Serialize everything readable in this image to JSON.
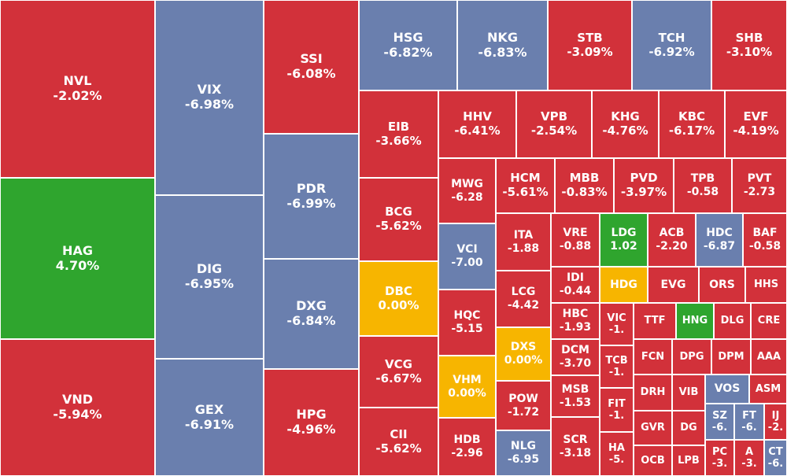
{
  "colors": {
    "down": "#d2313a",
    "floor": "#6a7fae",
    "ref": "#f7b500",
    "up": "#2fa52e"
  },
  "chart_data": {
    "type": "treemap",
    "tiles": [
      {
        "symbol": "NVL",
        "change": "-2.02%",
        "status": "down"
      },
      {
        "symbol": "HAG",
        "change": "4.70%",
        "status": "up"
      },
      {
        "symbol": "VND",
        "change": "-5.94%",
        "status": "down"
      },
      {
        "symbol": "VIX",
        "change": "-6.98%",
        "status": "floor"
      },
      {
        "symbol": "DIG",
        "change": "-6.95%",
        "status": "floor"
      },
      {
        "symbol": "GEX",
        "change": "-6.91%",
        "status": "floor"
      },
      {
        "symbol": "SSI",
        "change": "-6.08%",
        "status": "down"
      },
      {
        "symbol": "PDR",
        "change": "-6.99%",
        "status": "floor"
      },
      {
        "symbol": "DXG",
        "change": "-6.84%",
        "status": "floor"
      },
      {
        "symbol": "HPG",
        "change": "-4.96%",
        "status": "down"
      },
      {
        "symbol": "HSG",
        "change": "-6.82%",
        "status": "floor"
      },
      {
        "symbol": "NKG",
        "change": "-6.83%",
        "status": "floor"
      },
      {
        "symbol": "STB",
        "change": "-3.09%",
        "status": "down"
      },
      {
        "symbol": "TCH",
        "change": "-6.92%",
        "status": "floor"
      },
      {
        "symbol": "SHB",
        "change": "-3.10%",
        "status": "down"
      },
      {
        "symbol": "EIB",
        "change": "-3.66%",
        "status": "down"
      },
      {
        "symbol": "BCG",
        "change": "-5.62%",
        "status": "down"
      },
      {
        "symbol": "DBC",
        "change": "0.00%",
        "status": "ref"
      },
      {
        "symbol": "VCG",
        "change": "-6.67%",
        "status": "down"
      },
      {
        "symbol": "CII",
        "change": "-5.62%",
        "status": "down"
      },
      {
        "symbol": "HHV",
        "change": "-6.41%",
        "status": "down"
      },
      {
        "symbol": "VPB",
        "change": "-2.54%",
        "status": "down"
      },
      {
        "symbol": "KHG",
        "change": "-4.76%",
        "status": "down"
      },
      {
        "symbol": "KBC",
        "change": "-6.17%",
        "status": "down"
      },
      {
        "symbol": "EVF",
        "change": "-4.19%",
        "status": "down"
      },
      {
        "symbol": "MWG",
        "change": "-6.28",
        "status": "down"
      },
      {
        "symbol": "VCI",
        "change": "-7.00",
        "status": "floor"
      },
      {
        "symbol": "HQC",
        "change": "-5.15",
        "status": "down"
      },
      {
        "symbol": "VHM",
        "change": "0.00%",
        "status": "ref"
      },
      {
        "symbol": "HDB",
        "change": "-2.96",
        "status": "down"
      },
      {
        "symbol": "HCM",
        "change": "-5.61%",
        "status": "down"
      },
      {
        "symbol": "MBB",
        "change": "-0.83%",
        "status": "down"
      },
      {
        "symbol": "PVD",
        "change": "-3.97%",
        "status": "down"
      },
      {
        "symbol": "TPB",
        "change": "-0.58",
        "status": "down"
      },
      {
        "symbol": "PVT",
        "change": "-2.73",
        "status": "down"
      },
      {
        "symbol": "ITA",
        "change": "-1.88",
        "status": "down"
      },
      {
        "symbol": "VRE",
        "change": "-0.88",
        "status": "down"
      },
      {
        "symbol": "LDG",
        "change": "1.02",
        "status": "up"
      },
      {
        "symbol": "ACB",
        "change": "-2.20",
        "status": "down"
      },
      {
        "symbol": "HDC",
        "change": "-6.87",
        "status": "floor"
      },
      {
        "symbol": "BAF",
        "change": "-0.58",
        "status": "down"
      },
      {
        "symbol": "LCG",
        "change": "-4.42",
        "status": "down"
      },
      {
        "symbol": "IDI",
        "change": "-0.44",
        "status": "down"
      },
      {
        "symbol": "HDG",
        "change": "",
        "status": "ref"
      },
      {
        "symbol": "EVG",
        "change": "",
        "status": "down"
      },
      {
        "symbol": "ORS",
        "change": "",
        "status": "down"
      },
      {
        "symbol": "HHS",
        "change": "",
        "status": "down"
      },
      {
        "symbol": "DXS",
        "change": "0.00%",
        "status": "ref"
      },
      {
        "symbol": "HBC",
        "change": "-1.93",
        "status": "down"
      },
      {
        "symbol": "VIC",
        "change": "-1.",
        "status": "down"
      },
      {
        "symbol": "TTF",
        "change": "",
        "status": "down"
      },
      {
        "symbol": "HNG",
        "change": "",
        "status": "up"
      },
      {
        "symbol": "DLG",
        "change": "",
        "status": "down"
      },
      {
        "symbol": "CRE",
        "change": "",
        "status": "down"
      },
      {
        "symbol": "DCM",
        "change": "-3.70",
        "status": "down"
      },
      {
        "symbol": "TCB",
        "change": "-1.",
        "status": "down"
      },
      {
        "symbol": "FCN",
        "change": "",
        "status": "down"
      },
      {
        "symbol": "DPG",
        "change": "",
        "status": "down"
      },
      {
        "symbol": "DPM",
        "change": "",
        "status": "down"
      },
      {
        "symbol": "AAA",
        "change": "",
        "status": "down"
      },
      {
        "symbol": "POW",
        "change": "-1.72",
        "status": "down"
      },
      {
        "symbol": "MSB",
        "change": "-1.53",
        "status": "down"
      },
      {
        "symbol": "FIT",
        "change": "-1.",
        "status": "down"
      },
      {
        "symbol": "DRH",
        "change": "",
        "status": "down"
      },
      {
        "symbol": "VIB",
        "change": "",
        "status": "down"
      },
      {
        "symbol": "VOS",
        "change": "",
        "status": "floor"
      },
      {
        "symbol": "ASM",
        "change": "",
        "status": "down"
      },
      {
        "symbol": "NLG",
        "change": "-6.95",
        "status": "floor"
      },
      {
        "symbol": "SCR",
        "change": "-3.18",
        "status": "down"
      },
      {
        "symbol": "HA",
        "change": "-5.",
        "status": "down"
      },
      {
        "symbol": "GVR",
        "change": "",
        "status": "down"
      },
      {
        "symbol": "DG",
        "change": "",
        "status": "down"
      },
      {
        "symbol": "SZ",
        "change": "-6.",
        "status": "floor"
      },
      {
        "symbol": "FT",
        "change": "-6.",
        "status": "floor"
      },
      {
        "symbol": "IJ",
        "change": "-2.",
        "status": "down"
      },
      {
        "symbol": "OCB",
        "change": "",
        "status": "down"
      },
      {
        "symbol": "LPB",
        "change": "",
        "status": "down"
      },
      {
        "symbol": "PC",
        "change": "-3.",
        "status": "down"
      },
      {
        "symbol": "A",
        "change": "-3.",
        "status": "down"
      },
      {
        "symbol": "CT",
        "change": "-6.",
        "status": "floor"
      }
    ]
  }
}
